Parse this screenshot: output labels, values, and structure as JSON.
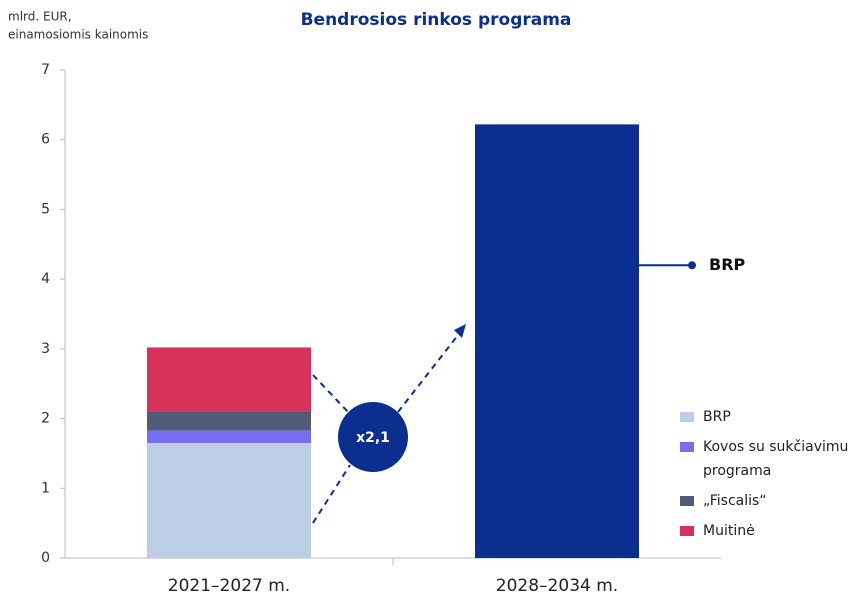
{
  "chart_data": {
    "type": "stacked_bar",
    "title": "Bendrosios rinkos programa",
    "ylabel": [
      "mlrd. EUR,",
      "einamosiomis kainomis"
    ],
    "categories": [
      "2021–2027 m.",
      "2028–2034 m."
    ],
    "series": [
      {
        "name": "BRP",
        "color": "#bccde6",
        "values": [
          1.65,
          null
        ]
      },
      {
        "name": "Kovos su sukčiavimu programa",
        "color": "#786ef0",
        "values": [
          0.18,
          null
        ]
      },
      {
        "name": "„Fiscalis“",
        "color": "#515b77",
        "values": [
          0.27,
          null
        ]
      },
      {
        "name": "Muitinė",
        "color": "#d6325a",
        "values": [
          0.92,
          null
        ]
      }
    ],
    "new_programme": {
      "name": "BRP",
      "color": "#0b2f8f",
      "values": [
        null,
        6.22
      ]
    },
    "annotation": "x2,1",
    "ylim": [
      0,
      7
    ],
    "yticks": [
      0,
      1,
      2,
      3,
      4,
      5,
      6,
      7
    ],
    "grid": false
  }
}
